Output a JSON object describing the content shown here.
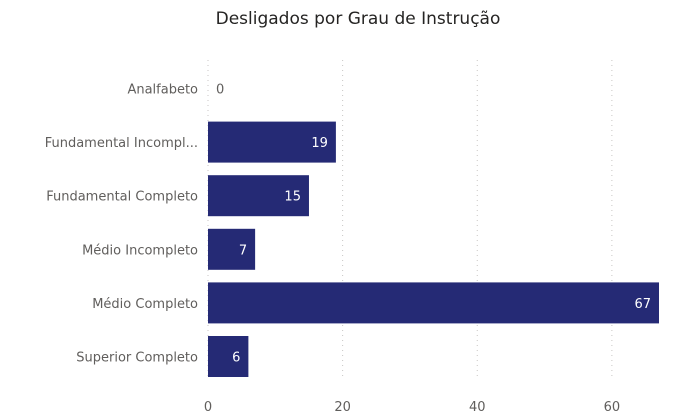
{
  "chart_data": {
    "type": "bar",
    "orientation": "horizontal",
    "title": "Desligados por Grau de Instrução",
    "categories": [
      "Analfabeto",
      "Fundamental Incompl...",
      "Fundamental Completo",
      "Médio Incompleto",
      "Médio Completo",
      "Superior Completo"
    ],
    "values": [
      0,
      19,
      15,
      7,
      67,
      6
    ],
    "xlim": [
      0,
      67
    ],
    "xticks": [
      0,
      20,
      40,
      60
    ],
    "grid": true,
    "bar_color": "#252a75",
    "xlabel": "",
    "ylabel": ""
  }
}
